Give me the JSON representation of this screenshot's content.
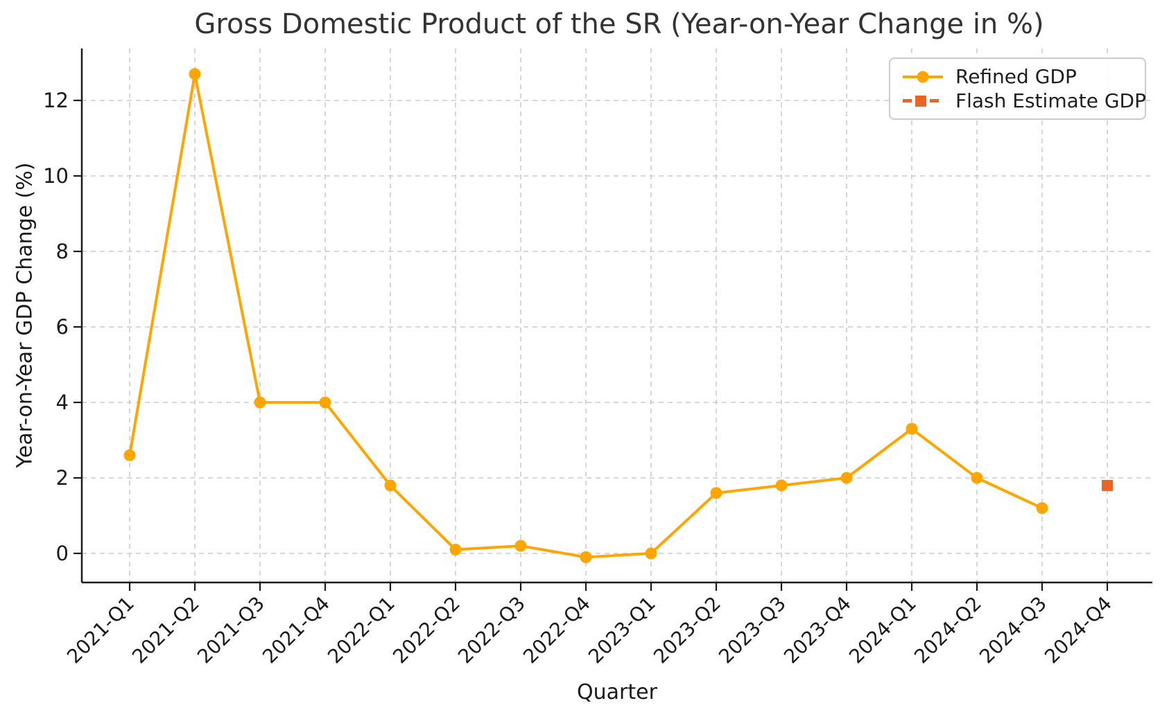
{
  "chart_data": {
    "type": "line",
    "title": "Gross Domestic Product of the SR (Year-on-Year Change in %)",
    "xlabel": "Quarter",
    "ylabel": "Year-on-Year GDP Change (%)",
    "categories": [
      "2021-Q1",
      "2021-Q2",
      "2021-Q3",
      "2021-Q4",
      "2022-Q1",
      "2022-Q2",
      "2022-Q3",
      "2022-Q4",
      "2023-Q1",
      "2023-Q2",
      "2023-Q3",
      "2023-Q4",
      "2024-Q1",
      "2024-Q2",
      "2024-Q3",
      "2024-Q4"
    ],
    "yticks": [
      0,
      2,
      4,
      6,
      8,
      10,
      12
    ],
    "ylim": [
      -0.8,
      13.4
    ],
    "grid": true,
    "grid_style": "dashed",
    "legend_position": "upper right",
    "series": [
      {
        "name": "Refined GDP",
        "color": "#FFA500",
        "marker": "circle",
        "linestyle": "solid",
        "values": [
          2.6,
          12.7,
          4.0,
          4.0,
          1.8,
          0.1,
          0.2,
          -0.1,
          0.0,
          1.6,
          1.8,
          2.0,
          3.3,
          2.0,
          1.2,
          null
        ]
      },
      {
        "name": "Flash Estimate GDP",
        "color": "#EB6424",
        "marker": "square",
        "linestyle": "dashed",
        "values": [
          null,
          null,
          null,
          null,
          null,
          null,
          null,
          null,
          null,
          null,
          null,
          null,
          null,
          null,
          null,
          1.8
        ]
      }
    ],
    "colors": {
      "grid": "#cccccc",
      "axis": "#1a1a1a",
      "tick_text": "#1a1a1a",
      "title_text": "#333333",
      "legend_border": "#cccccc"
    }
  }
}
